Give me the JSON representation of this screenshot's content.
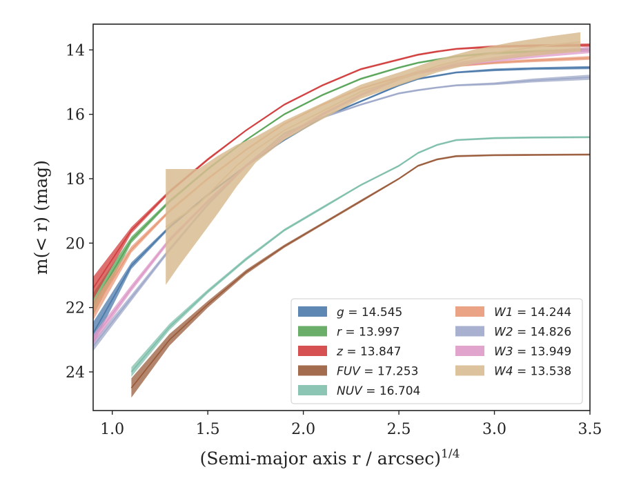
{
  "chart_data": {
    "type": "line",
    "title": "",
    "xlabel": "(Semi-major axis r / arcsec)",
    "xlabel_superscript": "1/4",
    "ylabel": "m(< r) (mag)",
    "xlim": [
      0.9,
      3.5
    ],
    "ylim": [
      25.2,
      13.2
    ],
    "y_inverted": true,
    "grid": false,
    "legend_position": "lower-right",
    "x_ticks": [
      "1.0",
      "1.5",
      "2.0",
      "2.5",
      "3.0",
      "3.5"
    ],
    "y_ticks": [
      "14",
      "16",
      "18",
      "20",
      "22",
      "24"
    ],
    "series": [
      {
        "name": "g",
        "value": "14.545",
        "color": "#4c7aab",
        "x": [
          0.9,
          1.1,
          1.3,
          1.5,
          1.7,
          1.9,
          2.1,
          2.3,
          2.5,
          2.6,
          2.7,
          2.8,
          3.0,
          3.2,
          3.5
        ],
        "y": [
          22.8,
          20.7,
          19.5,
          18.5,
          17.6,
          16.8,
          16.1,
          15.6,
          15.1,
          14.9,
          14.8,
          14.7,
          14.62,
          14.58,
          14.55
        ],
        "halfwidth": [
          0.35,
          0.1,
          0.05,
          0.04,
          0.03,
          0.03,
          0.03,
          0.03,
          0.03,
          0.03,
          0.03,
          0.03,
          0.04,
          0.04,
          0.05
        ]
      },
      {
        "name": "r",
        "value": "13.997",
        "color": "#5aa55a",
        "x": [
          0.9,
          1.1,
          1.3,
          1.5,
          1.7,
          1.9,
          2.1,
          2.3,
          2.5,
          2.6,
          2.7,
          2.8,
          3.0,
          3.2,
          3.5
        ],
        "y": [
          21.9,
          19.9,
          18.7,
          17.7,
          16.8,
          16.0,
          15.4,
          14.9,
          14.55,
          14.4,
          14.3,
          14.2,
          14.1,
          14.05,
          14.0
        ],
        "halfwidth": [
          0.35,
          0.1,
          0.05,
          0.04,
          0.03,
          0.03,
          0.03,
          0.03,
          0.03,
          0.03,
          0.03,
          0.03,
          0.04,
          0.04,
          0.05
        ]
      },
      {
        "name": "z",
        "value": "13.847",
        "color": "#d23f3f",
        "x": [
          0.9,
          1.1,
          1.3,
          1.5,
          1.7,
          1.9,
          2.1,
          2.3,
          2.5,
          2.6,
          2.7,
          2.8,
          3.0,
          3.2,
          3.5
        ],
        "y": [
          21.4,
          19.6,
          18.4,
          17.4,
          16.5,
          15.7,
          15.1,
          14.6,
          14.3,
          14.15,
          14.05,
          13.97,
          13.9,
          13.87,
          13.85
        ],
        "halfwidth": [
          0.35,
          0.1,
          0.05,
          0.04,
          0.03,
          0.03,
          0.03,
          0.03,
          0.03,
          0.03,
          0.03,
          0.03,
          0.04,
          0.04,
          0.05
        ]
      },
      {
        "name": "FUV",
        "value": "17.253",
        "color": "#9a5c3c",
        "x": [
          1.1,
          1.3,
          1.5,
          1.7,
          1.9,
          2.1,
          2.3,
          2.5,
          2.6,
          2.7,
          2.8,
          3.0,
          3.2,
          3.5
        ],
        "y": [
          24.5,
          23.0,
          21.9,
          20.9,
          20.1,
          19.4,
          18.7,
          18.0,
          17.6,
          17.4,
          17.3,
          17.27,
          17.26,
          17.25
        ],
        "halfwidth": [
          0.3,
          0.18,
          0.1,
          0.07,
          0.05,
          0.04,
          0.04,
          0.03,
          0.03,
          0.03,
          0.03,
          0.03,
          0.03,
          0.03
        ]
      },
      {
        "name": "NUV",
        "value": "16.704",
        "color": "#7fbfab",
        "x": [
          1.1,
          1.3,
          1.5,
          1.7,
          1.9,
          2.1,
          2.3,
          2.5,
          2.6,
          2.7,
          2.8,
          3.0,
          3.2,
          3.5
        ],
        "y": [
          24.0,
          22.6,
          21.5,
          20.5,
          19.6,
          18.9,
          18.2,
          17.6,
          17.2,
          16.95,
          16.8,
          16.74,
          16.72,
          16.71
        ],
        "halfwidth": [
          0.15,
          0.1,
          0.06,
          0.05,
          0.04,
          0.04,
          0.03,
          0.03,
          0.03,
          0.03,
          0.03,
          0.03,
          0.03,
          0.03
        ]
      },
      {
        "name": "W1",
        "value": "14.244",
        "color": "#e89a78",
        "x": [
          0.9,
          1.1,
          1.3,
          1.5,
          1.7,
          1.9,
          2.1,
          2.3,
          2.5,
          2.6,
          2.7,
          2.8,
          3.0,
          3.2,
          3.5
        ],
        "y": [
          22.1,
          20.2,
          19.0,
          18.0,
          17.1,
          16.3,
          15.7,
          15.2,
          14.85,
          14.7,
          14.6,
          14.5,
          14.4,
          14.33,
          14.25
        ],
        "halfwidth": [
          0.3,
          0.1,
          0.05,
          0.04,
          0.03,
          0.03,
          0.03,
          0.03,
          0.03,
          0.03,
          0.03,
          0.03,
          0.04,
          0.05,
          0.06
        ]
      },
      {
        "name": "W2",
        "value": "14.826",
        "color": "#9fa9ca",
        "x": [
          0.9,
          1.1,
          1.3,
          1.5,
          1.7,
          1.9,
          2.1,
          2.3,
          2.5,
          2.6,
          2.7,
          2.8,
          3.0,
          3.2,
          3.5
        ],
        "y": [
          23.2,
          21.7,
          20.2,
          18.8,
          17.6,
          16.6,
          16.1,
          15.7,
          15.35,
          15.25,
          15.17,
          15.1,
          15.05,
          14.95,
          14.85
        ],
        "halfwidth": [
          0.15,
          0.1,
          0.06,
          0.05,
          0.04,
          0.04,
          0.03,
          0.03,
          0.03,
          0.03,
          0.03,
          0.03,
          0.04,
          0.06,
          0.08
        ]
      },
      {
        "name": "W3",
        "value": "13.949",
        "color": "#de9ac8",
        "x": [
          0.9,
          1.1,
          1.3,
          1.5,
          1.7,
          1.9,
          2.1,
          2.3,
          2.5,
          2.6,
          2.7,
          2.8,
          3.0,
          3.2,
          3.5
        ],
        "y": [
          23.0,
          21.4,
          19.9,
          18.7,
          17.6,
          16.7,
          16.0,
          15.4,
          14.9,
          14.7,
          14.6,
          14.45,
          14.3,
          14.15,
          14.0
        ],
        "halfwidth": [
          0.15,
          0.1,
          0.07,
          0.05,
          0.05,
          0.05,
          0.05,
          0.05,
          0.05,
          0.06,
          0.06,
          0.07,
          0.08,
          0.1,
          0.1
        ]
      },
      {
        "name": "W4",
        "value": "13.538",
        "color": "#d9bc92",
        "x": [
          1.28,
          1.35,
          1.45,
          1.55,
          1.65,
          1.75,
          1.9,
          2.1,
          2.3,
          2.5,
          2.7,
          2.9,
          3.1,
          3.3,
          3.45
        ],
        "y": [
          19.5,
          19.2,
          18.8,
          18.2,
          17.6,
          17.1,
          16.5,
          15.9,
          15.3,
          14.9,
          14.5,
          14.2,
          14.0,
          13.85,
          13.75
        ],
        "halfwidth": [
          1.8,
          1.5,
          1.1,
          0.9,
          0.65,
          0.4,
          0.3,
          0.25,
          0.22,
          0.2,
          0.2,
          0.22,
          0.25,
          0.28,
          0.3
        ]
      }
    ]
  }
}
